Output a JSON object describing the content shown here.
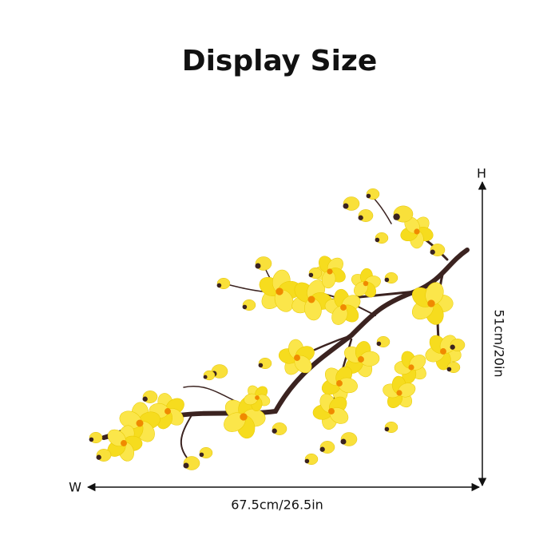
{
  "title": "Display Size",
  "dimensions": {
    "height": {
      "axis_label": "H",
      "value": "51cm/20in"
    },
    "width": {
      "axis_label": "W",
      "value": "67.5cm/26.5in"
    }
  }
}
